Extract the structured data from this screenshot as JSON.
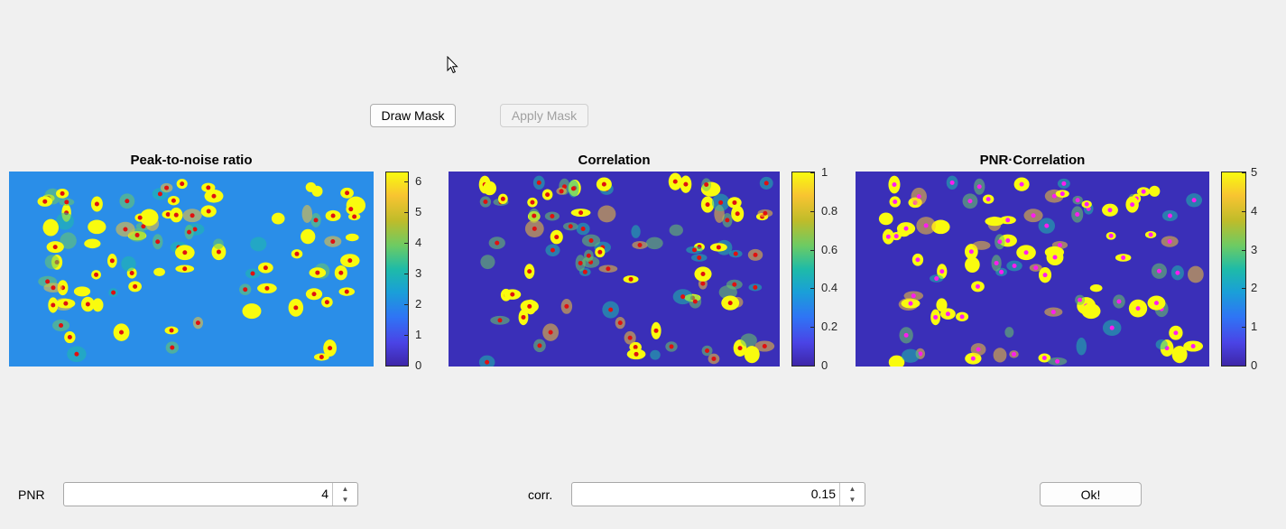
{
  "toolbar": {
    "draw_mask": "Draw Mask",
    "apply_mask": "Apply Mask"
  },
  "panels": [
    {
      "title": "Peak-to-noise ratio",
      "ticks": [
        "6",
        "5",
        "4",
        "3",
        "2",
        "1",
        "0"
      ],
      "tick_values": [
        6,
        5,
        4,
        3,
        2,
        1,
        0
      ],
      "max": 6.3,
      "peak_marker": "#e01010",
      "background": "#2a8ee8"
    },
    {
      "title": "Correlation",
      "ticks": [
        "1",
        "0.8",
        "0.6",
        "0.4",
        "0.2",
        "0"
      ],
      "tick_values": [
        1,
        0.8,
        0.6,
        0.4,
        0.2,
        0
      ],
      "max": 1.0,
      "peak_marker": "#e01010",
      "background": "#3a2fb8"
    },
    {
      "title": "PNR·Correlation",
      "ticks": [
        "5",
        "4",
        "3",
        "2",
        "1",
        "0"
      ],
      "tick_values": [
        5,
        4,
        3,
        2,
        1,
        0
      ],
      "max": 5.0,
      "peak_marker": "#ff1cf0",
      "background": "#3a2fb8"
    }
  ],
  "controls": {
    "pnr_label": "PNR",
    "pnr_value": "4",
    "corr_label": "corr.",
    "corr_value": "0.15",
    "ok_label": "Ok!"
  },
  "icons": {
    "spinner_up": "caret-up-icon",
    "spinner_down": "caret-down-icon",
    "cursor": "mouse-pointer-icon"
  },
  "colormap": "parula"
}
